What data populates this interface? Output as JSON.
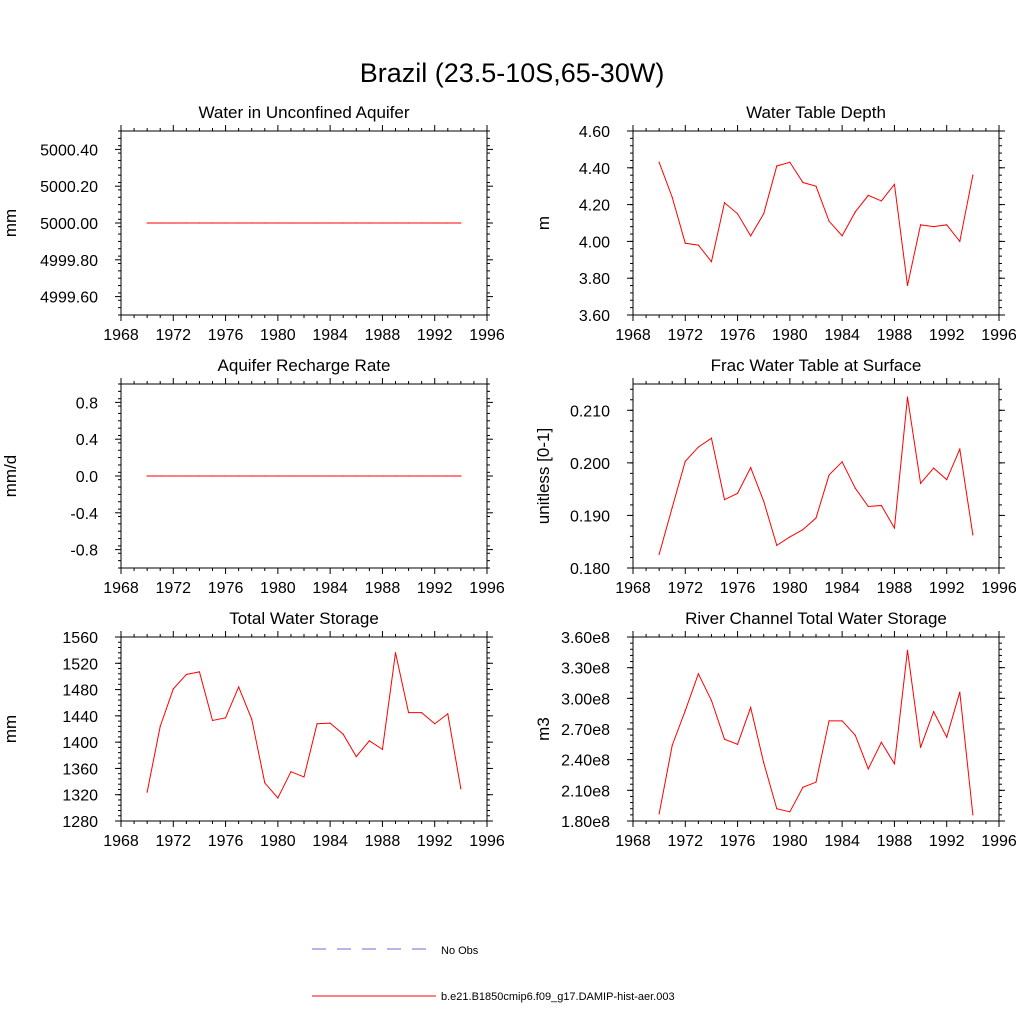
{
  "figure": {
    "title": "Brazil (23.5-10S,65-30W)"
  },
  "legend": {
    "entries": [
      {
        "label": "No Obs",
        "style": "dashed",
        "color": "#6b6bd6"
      },
      {
        "label": "b.e21.B1850cmip6.f09_g17.DAMIP-hist-aer.003",
        "style": "solid",
        "color": "#ff0000"
      }
    ]
  },
  "chart_data": [
    {
      "type": "line",
      "title": "Water in Unconfined Aquifer",
      "ylabel": "mm",
      "xlim": [
        1968,
        1996
      ],
      "ylim": [
        4999.5,
        5000.5
      ],
      "xticks": [
        1968,
        1972,
        1976,
        1980,
        1984,
        1988,
        1992,
        1996
      ],
      "yticks": [
        4999.6,
        4999.8,
        5000.0,
        5000.2,
        5000.4
      ],
      "ytick_labels": [
        "4999.60",
        "4999.80",
        "5000.00",
        "5000.20",
        "5000.40"
      ],
      "x": [
        1970,
        1971,
        1972,
        1973,
        1974,
        1975,
        1976,
        1977,
        1978,
        1979,
        1980,
        1981,
        1982,
        1983,
        1984,
        1985,
        1986,
        1987,
        1988,
        1989,
        1990,
        1991,
        1992,
        1993,
        1994
      ],
      "series": [
        {
          "color": "#ff0000",
          "values": [
            5000,
            5000,
            5000,
            5000,
            5000,
            5000,
            5000,
            5000,
            5000,
            5000,
            5000,
            5000,
            5000,
            5000,
            5000,
            5000,
            5000,
            5000,
            5000,
            5000,
            5000,
            5000,
            5000,
            5000,
            5000
          ]
        }
      ]
    },
    {
      "type": "line",
      "title": "Water Table Depth",
      "ylabel": "m",
      "xlim": [
        1968,
        1996
      ],
      "ylim": [
        3.6,
        4.6
      ],
      "xticks": [
        1968,
        1972,
        1976,
        1980,
        1984,
        1988,
        1992,
        1996
      ],
      "yticks": [
        3.6,
        3.8,
        4.0,
        4.2,
        4.4,
        4.6
      ],
      "ytick_labels": [
        "3.60",
        "3.80",
        "4.00",
        "4.20",
        "4.40",
        "4.60"
      ],
      "x": [
        1970,
        1971,
        1972,
        1973,
        1974,
        1975,
        1976,
        1977,
        1978,
        1979,
        1980,
        1981,
        1982,
        1983,
        1984,
        1985,
        1986,
        1987,
        1988,
        1989,
        1990,
        1991,
        1992,
        1993,
        1994
      ],
      "series": [
        {
          "color": "#ff0000",
          "values": [
            4.43,
            4.24,
            3.99,
            3.98,
            3.89,
            4.21,
            4.15,
            4.03,
            4.15,
            4.41,
            4.43,
            4.32,
            4.3,
            4.11,
            4.03,
            4.16,
            4.25,
            4.22,
            4.31,
            3.76,
            4.09,
            4.08,
            4.09,
            4.0,
            4.36
          ]
        }
      ]
    },
    {
      "type": "line",
      "title": "Aquifer Recharge Rate",
      "ylabel": "mm/d",
      "xlim": [
        1968,
        1996
      ],
      "ylim": [
        -1.0,
        1.0
      ],
      "xticks": [
        1968,
        1972,
        1976,
        1980,
        1984,
        1988,
        1992,
        1996
      ],
      "yticks": [
        -0.8,
        -0.4,
        0.0,
        0.4,
        0.8
      ],
      "ytick_labels": [
        "-0.8",
        "-0.4",
        "0.0",
        "0.4",
        "0.8"
      ],
      "x": [
        1970,
        1971,
        1972,
        1973,
        1974,
        1975,
        1976,
        1977,
        1978,
        1979,
        1980,
        1981,
        1982,
        1983,
        1984,
        1985,
        1986,
        1987,
        1988,
        1989,
        1990,
        1991,
        1992,
        1993,
        1994
      ],
      "series": [
        {
          "color": "#ff0000",
          "values": [
            0,
            0,
            0,
            0,
            0,
            0,
            0,
            0,
            0,
            0,
            0,
            0,
            0,
            0,
            0,
            0,
            0,
            0,
            0,
            0,
            0,
            0,
            0,
            0,
            0
          ]
        }
      ]
    },
    {
      "type": "line",
      "title": "Frac Water Table at Surface",
      "ylabel": "unitless [0-1]",
      "xlim": [
        1968,
        1996
      ],
      "ylim": [
        0.18,
        0.215
      ],
      "xticks": [
        1968,
        1972,
        1976,
        1980,
        1984,
        1988,
        1992,
        1996
      ],
      "yticks": [
        0.18,
        0.19,
        0.2,
        0.21
      ],
      "ytick_labels": [
        "0.180",
        "0.190",
        "0.200",
        "0.210"
      ],
      "x": [
        1970,
        1971,
        1972,
        1973,
        1974,
        1975,
        1976,
        1977,
        1978,
        1979,
        1980,
        1981,
        1982,
        1983,
        1984,
        1985,
        1986,
        1987,
        1988,
        1989,
        1990,
        1991,
        1992,
        1993,
        1994
      ],
      "series": [
        {
          "color": "#ff0000",
          "values": [
            0.1826,
            0.1915,
            0.2003,
            0.203,
            0.2047,
            0.193,
            0.1942,
            0.1991,
            0.1927,
            0.1843,
            0.1859,
            0.1873,
            0.1895,
            0.1977,
            0.2002,
            0.1952,
            0.1917,
            0.1919,
            0.1876,
            0.2125,
            0.1961,
            0.199,
            0.1968,
            0.2026,
            0.1863
          ]
        }
      ]
    },
    {
      "type": "line",
      "title": "Total Water Storage",
      "ylabel": "mm",
      "xlim": [
        1968,
        1996
      ],
      "ylim": [
        1280,
        1560
      ],
      "xticks": [
        1968,
        1972,
        1976,
        1980,
        1984,
        1988,
        1992,
        1996
      ],
      "yticks": [
        1280,
        1320,
        1360,
        1400,
        1440,
        1480,
        1520,
        1560
      ],
      "ytick_labels": [
        "1280",
        "1320",
        "1360",
        "1400",
        "1440",
        "1480",
        "1520",
        "1560"
      ],
      "x": [
        1970,
        1971,
        1972,
        1973,
        1974,
        1975,
        1976,
        1977,
        1978,
        1979,
        1980,
        1981,
        1982,
        1983,
        1984,
        1985,
        1986,
        1987,
        1988,
        1989,
        1990,
        1991,
        1992,
        1993,
        1994
      ],
      "series": [
        {
          "color": "#ff0000",
          "values": [
            1324,
            1424,
            1481,
            1503,
            1507,
            1433,
            1437,
            1484,
            1435,
            1338,
            1315,
            1355,
            1347,
            1428,
            1429,
            1412,
            1378,
            1402,
            1389,
            1536,
            1445,
            1445,
            1428,
            1443,
            1329
          ]
        }
      ]
    },
    {
      "type": "line",
      "title": "River Channel Total Water Storage",
      "ylabel": "m3",
      "xlim": [
        1968,
        1996
      ],
      "ylim": [
        180000000,
        360000000
      ],
      "xticks": [
        1968,
        1972,
        1976,
        1980,
        1984,
        1988,
        1992,
        1996
      ],
      "yticks": [
        180000000,
        210000000,
        240000000,
        270000000,
        300000000,
        330000000,
        360000000
      ],
      "ytick_labels": [
        "1.80e8",
        "2.10e8",
        "2.40e8",
        "2.70e8",
        "3.00e8",
        "3.30e8",
        "3.60e8"
      ],
      "x": [
        1970,
        1971,
        1972,
        1973,
        1974,
        1975,
        1976,
        1977,
        1978,
        1979,
        1980,
        1981,
        1982,
        1983,
        1984,
        1985,
        1986,
        1987,
        1988,
        1989,
        1990,
        1991,
        1992,
        1993,
        1994
      ],
      "series": [
        {
          "color": "#ff0000",
          "values": [
            187000000,
            254000000,
            288000000,
            324000000,
            298000000,
            260000000,
            255000000,
            291000000,
            237000000,
            192000000,
            189000000,
            213000000,
            218000000,
            278000000,
            278000000,
            264000000,
            231000000,
            257000000,
            236000000,
            347000000,
            252000000,
            287000000,
            262000000,
            306000000,
            186000000
          ]
        }
      ]
    }
  ]
}
